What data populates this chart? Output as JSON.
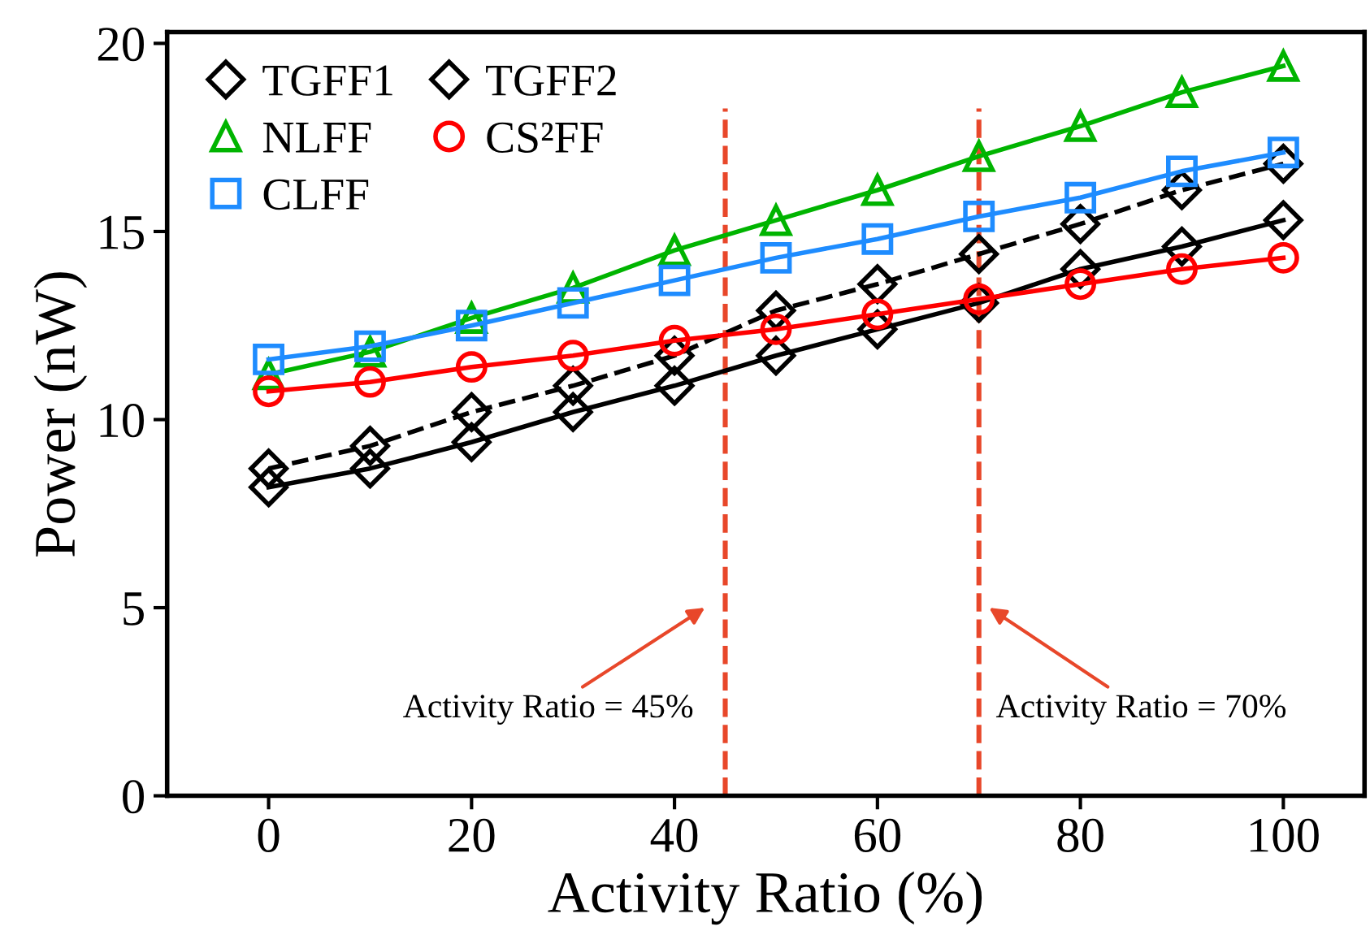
{
  "chart_data": {
    "type": "line",
    "xlabel": "Activity Ratio (%)",
    "ylabel": "Power (nW)",
    "x": [
      0,
      10,
      20,
      30,
      40,
      50,
      60,
      70,
      80,
      90,
      100
    ],
    "series": [
      {
        "name": "TGFF1",
        "color": "#000000",
        "line_style": "dashed",
        "marker": "diamond",
        "values": [
          8.7,
          9.3,
          10.2,
          10.9,
          11.7,
          12.9,
          13.6,
          14.4,
          15.2,
          16.1,
          16.8
        ]
      },
      {
        "name": "TGFF2",
        "color": "#000000",
        "line_style": "solid",
        "marker": "diamond",
        "values": [
          8.2,
          8.7,
          9.4,
          10.2,
          10.9,
          11.7,
          12.4,
          13.1,
          14.0,
          14.6,
          15.3
        ]
      },
      {
        "name": "NLFF",
        "color": "#00b400",
        "line_style": "solid",
        "marker": "triangle",
        "values": [
          11.2,
          11.8,
          12.7,
          13.5,
          14.5,
          15.3,
          16.1,
          17.0,
          17.8,
          18.7,
          19.4
        ]
      },
      {
        "name": "CS²FF",
        "color": "#ff0000",
        "line_style": "solid",
        "marker": "circle",
        "values": [
          10.75,
          11.0,
          11.4,
          11.7,
          12.1,
          12.4,
          12.8,
          13.2,
          13.6,
          14.0,
          14.3
        ]
      },
      {
        "name": "CLFF",
        "color": "#1e8cff",
        "line_style": "solid",
        "marker": "square",
        "values": [
          11.6,
          11.95,
          12.5,
          13.1,
          13.7,
          14.3,
          14.8,
          15.4,
          15.9,
          16.6,
          17.1
        ]
      }
    ],
    "xlim": [
      -10,
      108
    ],
    "xticks": [
      0,
      20,
      40,
      60,
      80,
      100
    ],
    "ylim": [
      0,
      20.3
    ],
    "yticks": [
      0,
      5,
      10,
      15,
      20
    ],
    "grid": false,
    "legend": "top left",
    "ref_lines": [
      {
        "axis": "x",
        "value": 45,
        "color": "#e8472a",
        "line_style": "dashed"
      },
      {
        "axis": "x",
        "value": 70,
        "color": "#e8472a",
        "line_style": "dashed"
      }
    ],
    "annotations": [
      {
        "text": "Activity Ratio = 45%",
        "x": 45,
        "y": 5
      },
      {
        "text": "Activity Ratio = 70%",
        "x": 70,
        "y": 5
      }
    ]
  }
}
